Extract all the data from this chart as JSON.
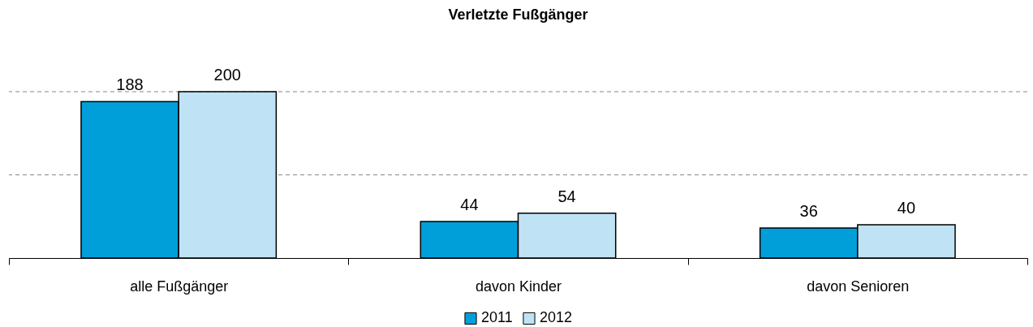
{
  "chart_data": {
    "type": "bar",
    "title": "Verletzte Fußgänger",
    "categories": [
      "alle Fußgänger",
      "davon Kinder",
      "davon Senioren"
    ],
    "series": [
      {
        "name": "2011",
        "color": "#009fda",
        "values": [
          188,
          44,
          36
        ]
      },
      {
        "name": "2012",
        "color": "#bfe3f4",
        "values": [
          200,
          54,
          40
        ]
      }
    ],
    "ref_lines": [
      {
        "axis": "y",
        "value": 100,
        "color": "#888888",
        "line_style": "dashed"
      },
      {
        "axis": "y",
        "value": 200,
        "color": "#888888",
        "line_style": "dashed"
      }
    ],
    "tick_labels": "x",
    "data_labels": true,
    "legend": "bottom"
  }
}
